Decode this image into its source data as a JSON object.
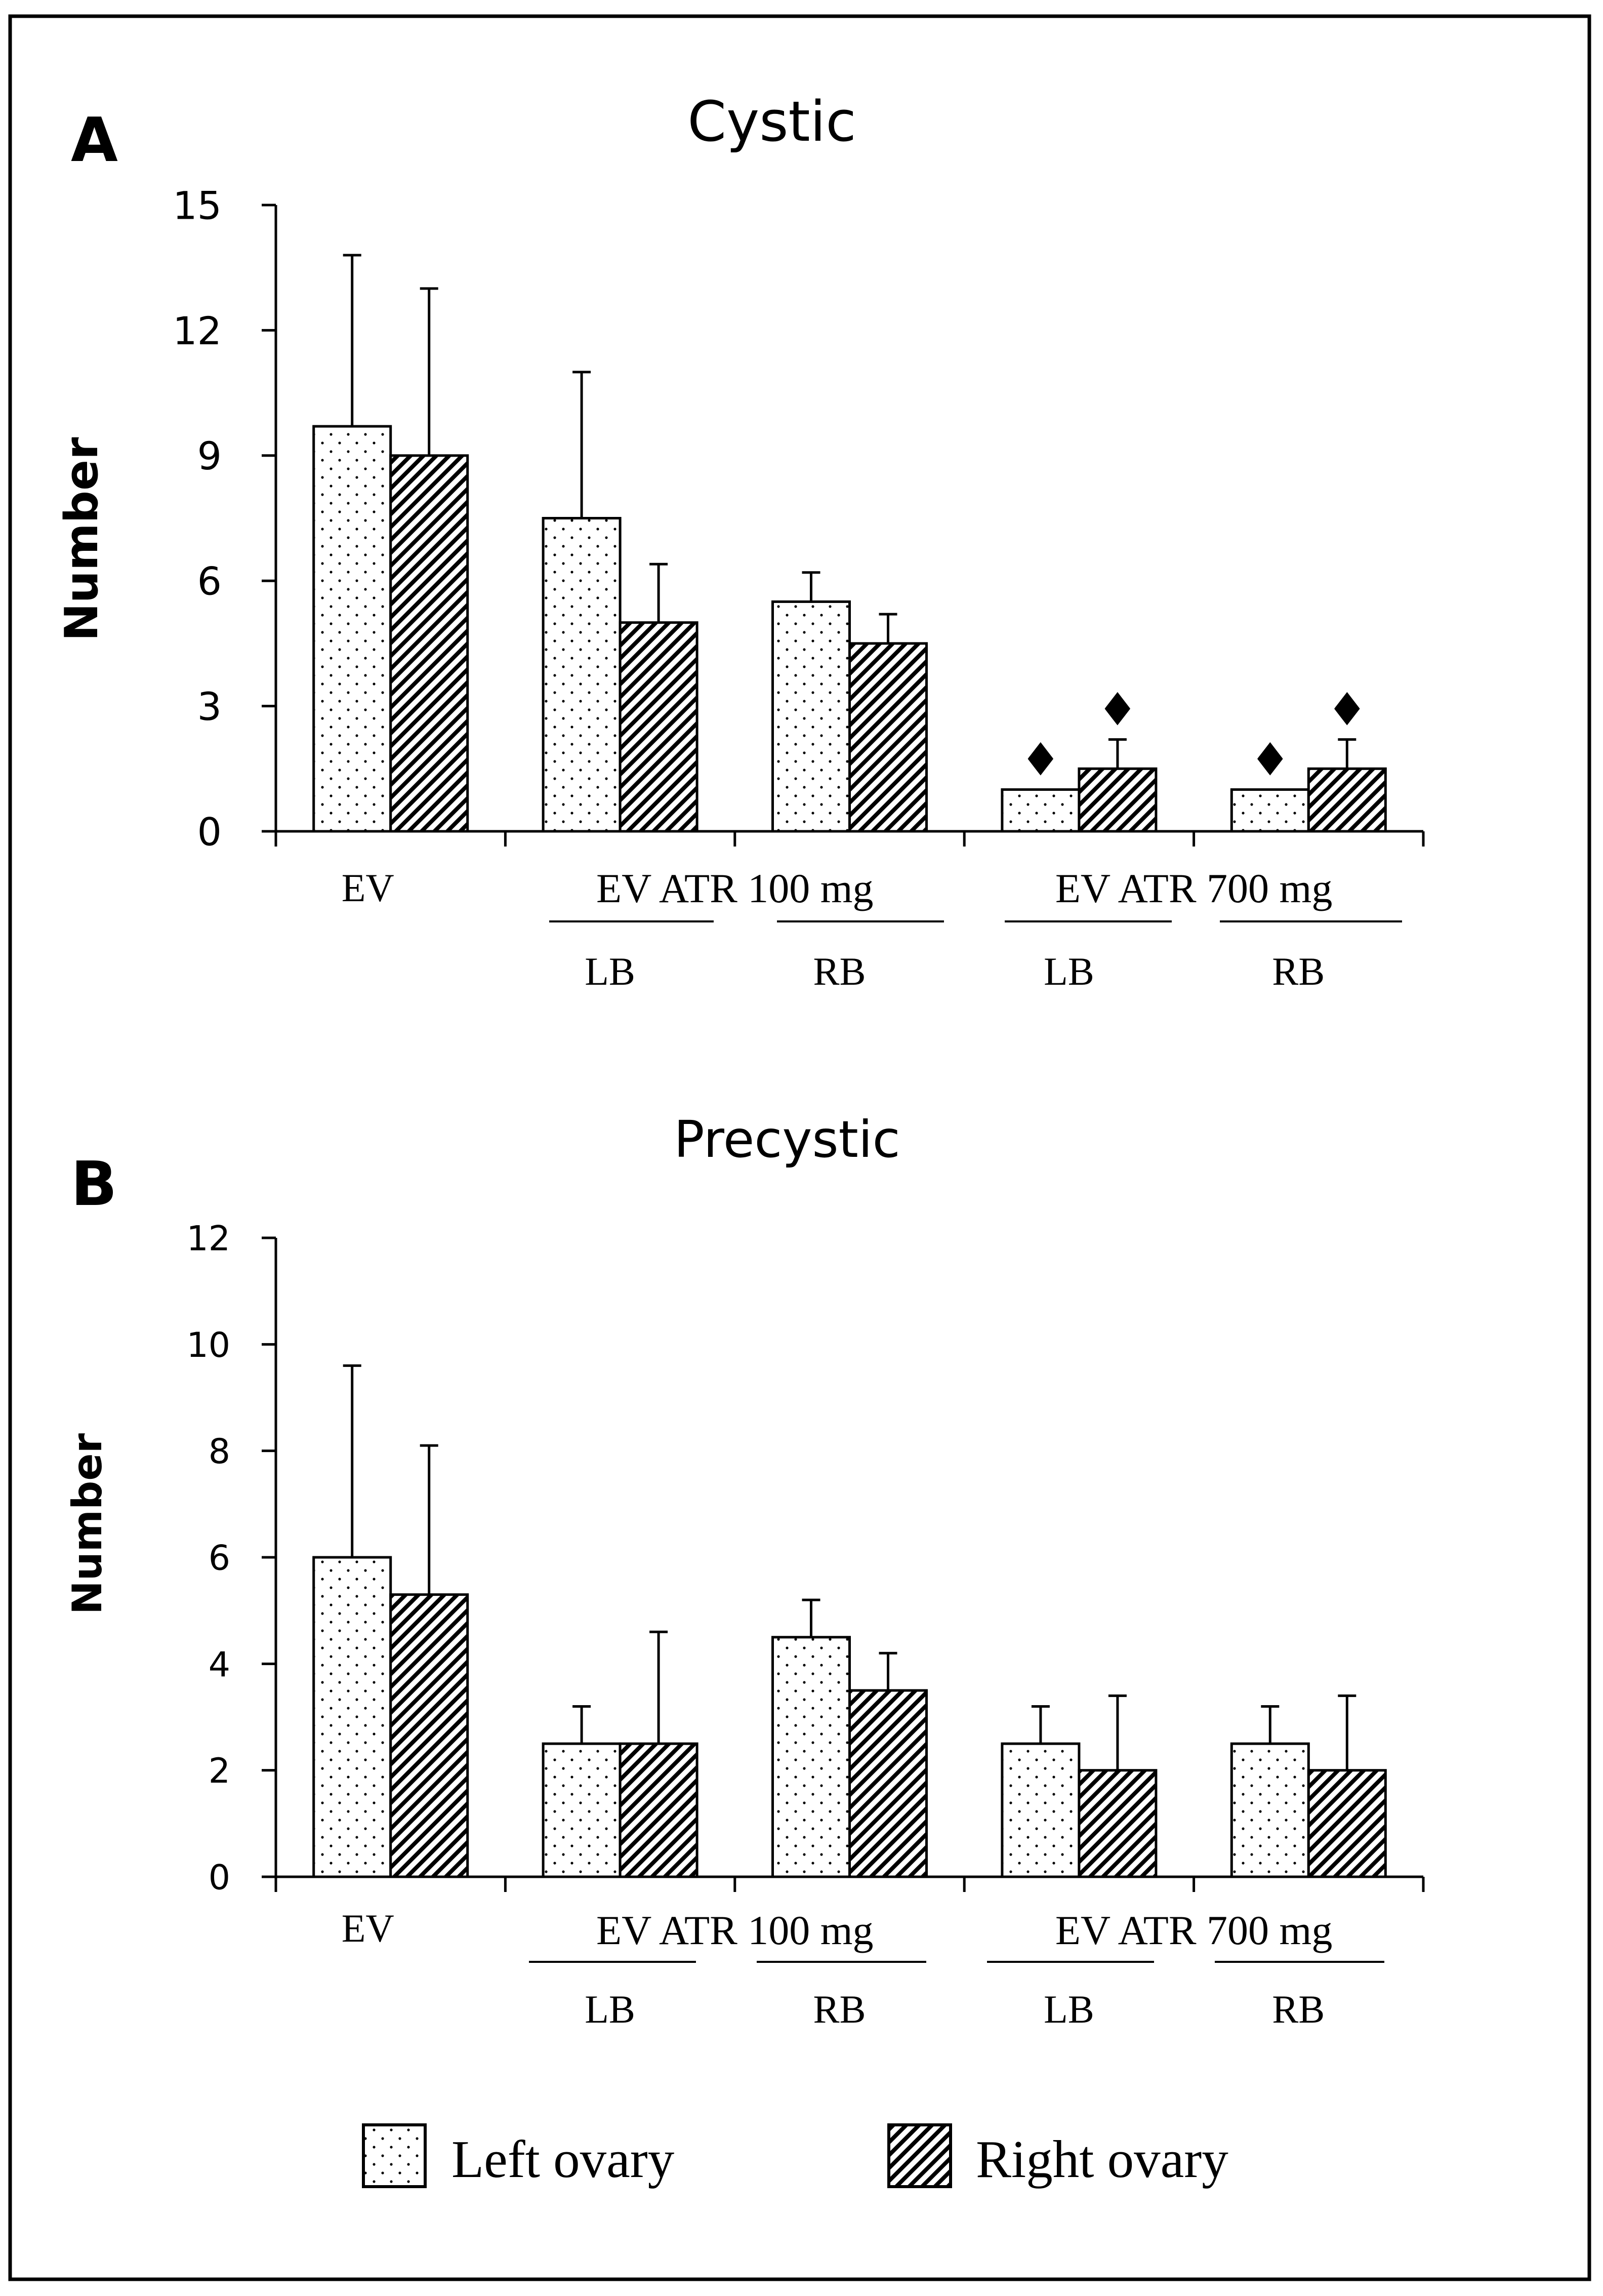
{
  "legend": {
    "left_label": "Left ovary",
    "right_label": "Right ovary"
  },
  "colors": {
    "ink": "#000000",
    "paper": "#ffffff"
  },
  "chart_data": [
    {
      "type": "bar",
      "panel_letter": "A",
      "title": "Cystic",
      "ylabel": "Number",
      "ylim": [
        0,
        15
      ],
      "yticks": [
        0,
        3,
        6,
        9,
        12,
        15
      ],
      "categories": [
        "EV",
        "EV ATR 100 mg LB",
        "EV ATR 100 mg RB",
        "EV ATR 700 mg LB",
        "EV ATR 700 mg RB"
      ],
      "series": [
        {
          "name": "Left ovary",
          "values": [
            9.7,
            7.5,
            5.5,
            1.0,
            1.0
          ],
          "errors": [
            4.1,
            3.5,
            0.7,
            0,
            0
          ],
          "markers": [
            false,
            false,
            false,
            true,
            true
          ]
        },
        {
          "name": "Right ovary",
          "values": [
            9.0,
            5.0,
            4.5,
            1.5,
            1.5
          ],
          "errors": [
            4.0,
            1.4,
            0.7,
            0.7,
            0.7
          ],
          "markers": [
            false,
            false,
            false,
            true,
            true
          ]
        }
      ],
      "marker_symbol": "♦",
      "group_labels": [
        {
          "text": "EV ATR 100 mg",
          "from": 1,
          "to": 2
        },
        {
          "text": "EV ATR 700 mg",
          "from": 3,
          "to": 4
        }
      ],
      "sub_labels": [
        "EV",
        "LB",
        "RB",
        "LB",
        "RB"
      ]
    },
    {
      "type": "bar",
      "panel_letter": "B",
      "title": "Precystic",
      "ylabel": "Number",
      "ylim": [
        0,
        12
      ],
      "yticks": [
        0,
        2,
        4,
        6,
        8,
        10,
        12
      ],
      "categories": [
        "EV",
        "EV ATR 100 mg LB",
        "EV ATR 100 mg RB",
        "EV ATR 700 mg LB",
        "EV ATR 700 mg RB"
      ],
      "series": [
        {
          "name": "Left ovary",
          "values": [
            6.0,
            2.5,
            4.5,
            2.5,
            2.5
          ],
          "errors": [
            3.6,
            0.7,
            0.7,
            0.7,
            0.7
          ],
          "markers": [
            false,
            false,
            false,
            false,
            false
          ]
        },
        {
          "name": "Right ovary",
          "values": [
            5.3,
            2.5,
            3.5,
            2.0,
            2.0
          ],
          "errors": [
            2.8,
            2.1,
            0.7,
            1.4,
            1.4
          ],
          "markers": [
            false,
            false,
            false,
            false,
            false
          ]
        }
      ],
      "marker_symbol": "♦",
      "group_labels": [
        {
          "text": "EV ATR 100 mg",
          "from": 1,
          "to": 2
        },
        {
          "text": "EV ATR 700 mg",
          "from": 3,
          "to": 4
        }
      ],
      "sub_labels": [
        "EV",
        "LB",
        "RB",
        "LB",
        "RB"
      ]
    }
  ]
}
